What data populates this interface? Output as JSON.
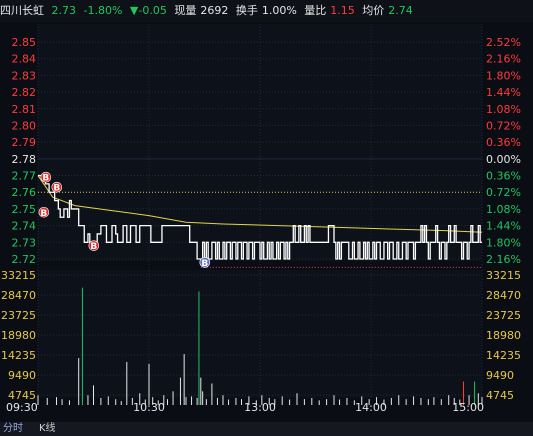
{
  "header": {
    "name": "四川长虹",
    "price": "2.73",
    "change_pct": "-1.80%",
    "change_abs": "▼-0.05",
    "volume_label": "现量",
    "volume_value": "2692",
    "turnover_label": "换手",
    "turnover_value": "1.00%",
    "ratio_label": "量比",
    "ratio_value": "1.15",
    "avg_label": "均价",
    "avg_value": "2.74"
  },
  "tabs": {
    "left": "分时",
    "kline": "K线"
  },
  "colors": {
    "up": "#ff3b3b",
    "down": "#22c55e",
    "price_line": "#ffffff",
    "avg_line": "#e7d34a",
    "grid": "#1f2a3c",
    "marker": "#d92a2a",
    "marker_s": "#5b6bd6",
    "prev_close": "#e6c84a"
  },
  "chart_data": {
    "type": "line",
    "price_ticks": [
      "2.85",
      "2.84",
      "2.83",
      "2.82",
      "2.81",
      "2.80",
      "2.79",
      "2.78",
      "2.77",
      "2.76",
      "2.75",
      "2.74",
      "2.73",
      "2.72"
    ],
    "pct_ticks": [
      "2.52%",
      "2.16%",
      "1.80%",
      "1.44%",
      "1.08%",
      "0.72%",
      "0.36%",
      "0.00%",
      "0.36%",
      "0.72%",
      "1.08%",
      "1.44%",
      "1.80%",
      "2.16%"
    ],
    "prev_close": 2.78,
    "price_range": [
      2.72,
      2.855
    ],
    "volume_ticks": [
      "33215",
      "28470",
      "23725",
      "18980",
      "14235",
      "9490",
      "4745"
    ],
    "volume_max": 33215,
    "time_ticks": [
      "09:30",
      "10:30",
      "13:00",
      "14:00",
      "15:00"
    ],
    "minutes_total": 240,
    "price_series": {
      "name": "price",
      "points": [
        [
          0,
          2.77
        ],
        [
          4,
          2.765
        ],
        [
          6,
          2.76
        ],
        [
          9,
          2.755
        ],
        [
          11,
          2.75
        ],
        [
          12,
          2.745
        ],
        [
          14,
          2.75
        ],
        [
          16,
          2.745
        ],
        [
          17,
          2.755
        ],
        [
          18,
          2.75
        ],
        [
          20,
          2.75
        ],
        [
          22,
          2.74
        ],
        [
          24,
          2.74
        ],
        [
          25,
          2.73
        ],
        [
          26,
          2.73
        ],
        [
          27,
          2.735
        ],
        [
          28,
          2.73
        ],
        [
          31,
          2.73
        ],
        [
          32,
          2.735
        ],
        [
          34,
          2.74
        ],
        [
          36,
          2.74
        ],
        [
          37,
          2.73
        ],
        [
          39,
          2.73
        ],
        [
          40,
          2.74
        ],
        [
          41,
          2.74
        ],
        [
          42,
          2.735
        ],
        [
          43,
          2.73
        ],
        [
          45,
          2.73
        ],
        [
          46,
          2.74
        ],
        [
          47,
          2.74
        ],
        [
          48,
          2.73
        ],
        [
          49,
          2.73
        ],
        [
          50,
          2.74
        ],
        [
          52,
          2.74
        ],
        [
          53,
          2.73
        ],
        [
          54,
          2.73
        ],
        [
          55,
          2.74
        ],
        [
          60,
          2.74
        ],
        [
          61,
          2.73
        ],
        [
          66,
          2.73
        ],
        [
          67,
          2.74
        ],
        [
          81,
          2.74
        ],
        [
          82,
          2.73
        ],
        [
          85,
          2.73
        ],
        [
          86,
          2.72
        ],
        [
          88,
          2.72
        ],
        [
          89,
          2.73
        ],
        [
          90,
          2.72
        ],
        [
          91,
          2.73
        ],
        [
          92,
          2.72
        ],
        [
          94,
          2.73
        ],
        [
          96,
          2.72
        ],
        [
          97,
          2.73
        ],
        [
          98,
          2.72
        ],
        [
          100,
          2.73
        ],
        [
          101,
          2.72
        ],
        [
          102,
          2.73
        ],
        [
          104,
          2.72
        ],
        [
          105,
          2.73
        ],
        [
          107,
          2.72
        ],
        [
          108,
          2.73
        ],
        [
          110,
          2.72
        ],
        [
          111,
          2.73
        ],
        [
          113,
          2.72
        ],
        [
          114,
          2.73
        ],
        [
          116,
          2.72
        ],
        [
          117,
          2.73
        ],
        [
          119,
          2.73
        ],
        [
          120,
          2.72
        ],
        [
          121,
          2.73
        ],
        [
          122,
          2.72
        ],
        [
          124,
          2.73
        ],
        [
          125,
          2.72
        ],
        [
          126,
          2.73
        ],
        [
          127,
          2.72
        ],
        [
          129,
          2.73
        ],
        [
          130,
          2.72
        ],
        [
          131,
          2.73
        ],
        [
          133,
          2.72
        ],
        [
          134,
          2.73
        ],
        [
          135,
          2.72
        ],
        [
          136,
          2.73
        ],
        [
          137,
          2.73
        ],
        [
          138,
          2.74
        ],
        [
          139,
          2.73
        ],
        [
          140,
          2.73
        ],
        [
          141,
          2.74
        ],
        [
          142,
          2.73
        ],
        [
          143,
          2.73
        ],
        [
          144,
          2.74
        ],
        [
          145,
          2.73
        ],
        [
          146,
          2.74
        ],
        [
          147,
          2.73
        ],
        [
          156,
          2.73
        ],
        [
          157,
          2.74
        ],
        [
          159,
          2.74
        ],
        [
          160,
          2.73
        ],
        [
          161,
          2.72
        ],
        [
          162,
          2.73
        ],
        [
          163,
          2.72
        ],
        [
          164,
          2.73
        ],
        [
          167,
          2.73
        ],
        [
          168,
          2.72
        ],
        [
          170,
          2.73
        ],
        [
          171,
          2.72
        ],
        [
          173,
          2.73
        ],
        [
          174,
          2.72
        ],
        [
          175,
          2.72
        ],
        [
          176,
          2.73
        ],
        [
          177,
          2.72
        ],
        [
          178,
          2.73
        ],
        [
          179,
          2.72
        ],
        [
          181,
          2.73
        ],
        [
          182,
          2.72
        ],
        [
          183,
          2.73
        ],
        [
          185,
          2.72
        ],
        [
          187,
          2.73
        ],
        [
          189,
          2.72
        ],
        [
          190,
          2.73
        ],
        [
          192,
          2.72
        ],
        [
          194,
          2.73
        ],
        [
          195,
          2.72
        ],
        [
          197,
          2.73
        ],
        [
          199,
          2.72
        ],
        [
          200,
          2.73
        ],
        [
          203,
          2.72
        ],
        [
          204,
          2.73
        ],
        [
          206,
          2.73
        ],
        [
          207,
          2.74
        ],
        [
          208,
          2.73
        ],
        [
          209,
          2.74
        ],
        [
          210,
          2.73
        ],
        [
          211,
          2.72
        ],
        [
          212,
          2.73
        ],
        [
          215,
          2.74
        ],
        [
          216,
          2.73
        ],
        [
          217,
          2.72
        ],
        [
          218,
          2.73
        ],
        [
          220,
          2.72
        ],
        [
          221,
          2.73
        ],
        [
          222,
          2.74
        ],
        [
          223,
          2.73
        ],
        [
          225,
          2.74
        ],
        [
          226,
          2.73
        ],
        [
          228,
          2.73
        ],
        [
          229,
          2.72
        ],
        [
          230,
          2.73
        ],
        [
          232,
          2.72
        ],
        [
          233,
          2.73
        ],
        [
          234,
          2.74
        ],
        [
          235,
          2.73
        ],
        [
          237,
          2.73
        ],
        [
          238,
          2.74
        ],
        [
          239,
          2.73
        ],
        [
          240,
          2.73
        ]
      ]
    },
    "avg_series": {
      "name": "avg",
      "points": [
        [
          0,
          2.77
        ],
        [
          8,
          2.757
        ],
        [
          20,
          2.752
        ],
        [
          40,
          2.749
        ],
        [
          60,
          2.746
        ],
        [
          80,
          2.742
        ],
        [
          100,
          2.741
        ],
        [
          130,
          2.74
        ],
        [
          160,
          2.739
        ],
        [
          190,
          2.738
        ],
        [
          220,
          2.737
        ],
        [
          240,
          2.736
        ]
      ]
    },
    "markers": [
      {
        "label": "B",
        "time": 1,
        "price": 2.769
      },
      {
        "label": "B",
        "time": 8,
        "price": 2.763
      },
      {
        "label": "B",
        "time": 1,
        "price": 2.748
      },
      {
        "label": "B",
        "time": 28,
        "price": 2.728
      },
      {
        "label": "B",
        "time": 88,
        "price": 2.718
      }
    ],
    "volumes": [
      {
        "t": 0,
        "v": 2500,
        "c": "w"
      },
      {
        "t": 5,
        "v": 1800,
        "c": "w"
      },
      {
        "t": 10,
        "v": 2000,
        "c": "w"
      },
      {
        "t": 13,
        "v": 1500,
        "c": "w"
      },
      {
        "t": 17,
        "v": 1200,
        "c": "w"
      },
      {
        "t": 22,
        "v": 12000,
        "c": "w"
      },
      {
        "t": 24,
        "v": 30000,
        "c": "g"
      },
      {
        "t": 27,
        "v": 2500,
        "c": "w"
      },
      {
        "t": 30,
        "v": 5000,
        "c": "w"
      },
      {
        "t": 34,
        "v": 1800,
        "c": "w"
      },
      {
        "t": 38,
        "v": 2200,
        "c": "w"
      },
      {
        "t": 42,
        "v": 1500,
        "c": "w"
      },
      {
        "t": 45,
        "v": 1000,
        "c": "w"
      },
      {
        "t": 48,
        "v": 11000,
        "c": "w"
      },
      {
        "t": 51,
        "v": 1800,
        "c": "w"
      },
      {
        "t": 55,
        "v": 3000,
        "c": "w"
      },
      {
        "t": 58,
        "v": 1400,
        "c": "w"
      },
      {
        "t": 60,
        "v": 10500,
        "c": "w"
      },
      {
        "t": 62,
        "v": 2000,
        "c": "w"
      },
      {
        "t": 65,
        "v": 1200,
        "c": "w"
      },
      {
        "t": 68,
        "v": 2500,
        "c": "w"
      },
      {
        "t": 70,
        "v": 1500,
        "c": "w"
      },
      {
        "t": 73,
        "v": 3500,
        "c": "w"
      },
      {
        "t": 77,
        "v": 7000,
        "c": "w"
      },
      {
        "t": 79,
        "v": 13000,
        "c": "w"
      },
      {
        "t": 80,
        "v": 2000,
        "c": "w"
      },
      {
        "t": 83,
        "v": 2200,
        "c": "w"
      },
      {
        "t": 86,
        "v": 1800,
        "c": "w"
      },
      {
        "t": 87,
        "v": 29000,
        "c": "g"
      },
      {
        "t": 88,
        "v": 7000,
        "c": "w"
      },
      {
        "t": 89,
        "v": 3500,
        "c": "w"
      },
      {
        "t": 91,
        "v": 1500,
        "c": "w"
      },
      {
        "t": 94,
        "v": 5500,
        "c": "w"
      },
      {
        "t": 97,
        "v": 1800,
        "c": "w"
      },
      {
        "t": 100,
        "v": 2500,
        "c": "w"
      },
      {
        "t": 103,
        "v": 1400,
        "c": "w"
      },
      {
        "t": 107,
        "v": 1800,
        "c": "w"
      },
      {
        "t": 110,
        "v": 1500,
        "c": "w"
      },
      {
        "t": 114,
        "v": 2200,
        "c": "w"
      },
      {
        "t": 118,
        "v": 1200,
        "c": "w"
      },
      {
        "t": 121,
        "v": 2500,
        "c": "w"
      },
      {
        "t": 125,
        "v": 1800,
        "c": "w"
      },
      {
        "t": 128,
        "v": 1500,
        "c": "w"
      },
      {
        "t": 132,
        "v": 2200,
        "c": "w"
      },
      {
        "t": 136,
        "v": 1400,
        "c": "w"
      },
      {
        "t": 140,
        "v": 3000,
        "c": "w"
      },
      {
        "t": 144,
        "v": 1500,
        "c": "w"
      },
      {
        "t": 148,
        "v": 1800,
        "c": "w"
      },
      {
        "t": 152,
        "v": 1200,
        "c": "w"
      },
      {
        "t": 156,
        "v": 1500,
        "c": "w"
      },
      {
        "t": 160,
        "v": 2500,
        "c": "w"
      },
      {
        "t": 163,
        "v": 1400,
        "c": "w"
      },
      {
        "t": 167,
        "v": 1800,
        "c": "w"
      },
      {
        "t": 171,
        "v": 1200,
        "c": "w"
      },
      {
        "t": 175,
        "v": 2200,
        "c": "w"
      },
      {
        "t": 179,
        "v": 1500,
        "c": "w"
      },
      {
        "t": 183,
        "v": 2000,
        "c": "w"
      },
      {
        "t": 187,
        "v": 1400,
        "c": "w"
      },
      {
        "t": 191,
        "v": 1800,
        "c": "w"
      },
      {
        "t": 195,
        "v": 2500,
        "c": "w"
      },
      {
        "t": 199,
        "v": 1500,
        "c": "w"
      },
      {
        "t": 203,
        "v": 2200,
        "c": "w"
      },
      {
        "t": 207,
        "v": 1800,
        "c": "w"
      },
      {
        "t": 211,
        "v": 1500,
        "c": "w"
      },
      {
        "t": 214,
        "v": 2000,
        "c": "w"
      },
      {
        "t": 218,
        "v": 1500,
        "c": "w"
      },
      {
        "t": 222,
        "v": 2500,
        "c": "w"
      },
      {
        "t": 225,
        "v": 1800,
        "c": "w"
      },
      {
        "t": 228,
        "v": 1400,
        "c": "w"
      },
      {
        "t": 230,
        "v": 6000,
        "c": "r"
      },
      {
        "t": 233,
        "v": 2500,
        "c": "w"
      },
      {
        "t": 236,
        "v": 6000,
        "c": "g"
      },
      {
        "t": 238,
        "v": 3000,
        "c": "w"
      },
      {
        "t": 240,
        "v": 2000,
        "c": "w"
      }
    ]
  }
}
